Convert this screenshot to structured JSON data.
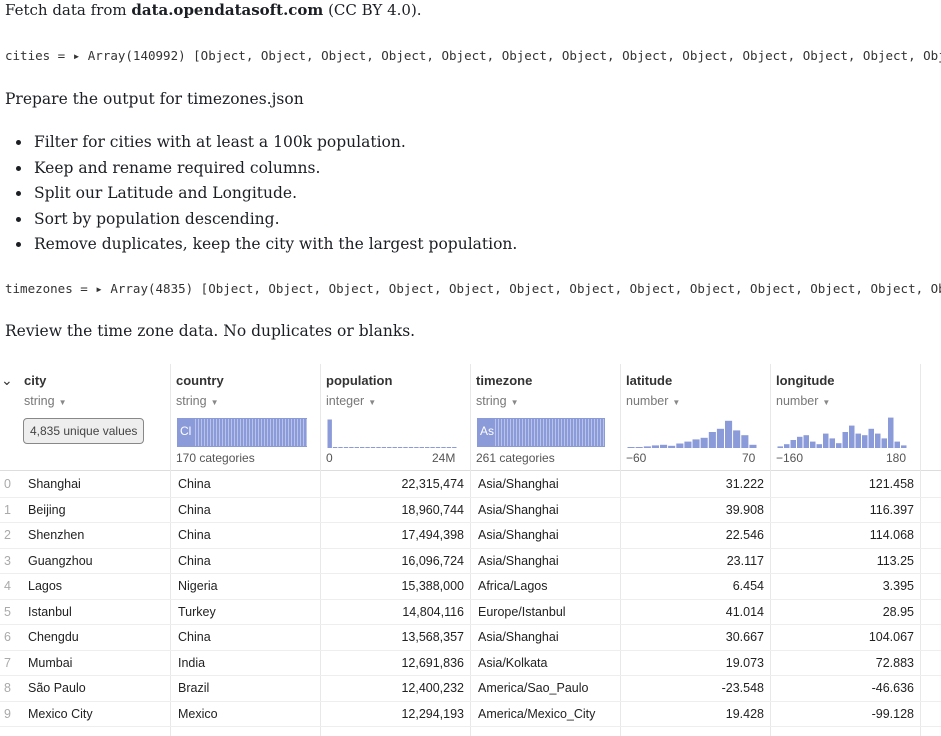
{
  "fetch": {
    "prefix": "Fetch data from ",
    "source": "data.opendatasoft.com",
    "suffix": " (CC BY 4.0)."
  },
  "cities_output": {
    "text": "cities = ▸ Array(140992) [Object, Object, Object, Object, Object, Object, Object, Object, Object, Object, Object, Object, Object"
  },
  "prepare_text": "Prepare the output for timezones.json",
  "steps": [
    "Filter for cities with at least a 100k population.",
    "Keep and rename required columns.",
    "Split our Latitude and Longitude.",
    "Sort by population descending.",
    "Remove duplicates, keep the city with the largest population."
  ],
  "timezones_output": {
    "text": "timezones = ▸ Array(4835) [Object, Object, Object, Object, Object, Object, Object, Object, Object, Object, Object, Object, Object"
  },
  "review_text": "Review the time zone data. No duplicates or blanks.",
  "table": {
    "columns": [
      {
        "name": "city",
        "type": "string",
        "summary": "4,835 unique values"
      },
      {
        "name": "country",
        "type": "string",
        "bar_label": "Cl",
        "count_label": "170 categories"
      },
      {
        "name": "population",
        "type": "integer",
        "lo": "0",
        "hi": "24M"
      },
      {
        "name": "timezone",
        "type": "string",
        "bar_label": "As",
        "count_label": "261 categories"
      },
      {
        "name": "latitude",
        "type": "number",
        "lo": "−60",
        "hi": "70"
      },
      {
        "name": "longitude",
        "type": "number",
        "lo": "−160",
        "hi": "180"
      }
    ],
    "rows": [
      {
        "idx": "0",
        "city": "Shanghai",
        "country": "China",
        "population": "22,315,474",
        "timezone": "Asia/Shanghai",
        "latitude": "31.222",
        "longitude": "121.458"
      },
      {
        "idx": "1",
        "city": "Beijing",
        "country": "China",
        "population": "18,960,744",
        "timezone": "Asia/Shanghai",
        "latitude": "39.908",
        "longitude": "116.397"
      },
      {
        "idx": "2",
        "city": "Shenzhen",
        "country": "China",
        "population": "17,494,398",
        "timezone": "Asia/Shanghai",
        "latitude": "22.546",
        "longitude": "114.068"
      },
      {
        "idx": "3",
        "city": "Guangzhou",
        "country": "China",
        "population": "16,096,724",
        "timezone": "Asia/Shanghai",
        "latitude": "23.117",
        "longitude": "113.25"
      },
      {
        "idx": "4",
        "city": "Lagos",
        "country": "Nigeria",
        "population": "15,388,000",
        "timezone": "Africa/Lagos",
        "latitude": "6.454",
        "longitude": "3.395"
      },
      {
        "idx": "5",
        "city": "Istanbul",
        "country": "Turkey",
        "population": "14,804,116",
        "timezone": "Europe/Istanbul",
        "latitude": "41.014",
        "longitude": "28.95"
      },
      {
        "idx": "6",
        "city": "Chengdu",
        "country": "China",
        "population": "13,568,357",
        "timezone": "Asia/Shanghai",
        "latitude": "30.667",
        "longitude": "104.067"
      },
      {
        "idx": "7",
        "city": "Mumbai",
        "country": "India",
        "population": "12,691,836",
        "timezone": "Asia/Kolkata",
        "latitude": "19.073",
        "longitude": "72.883"
      },
      {
        "idx": "8",
        "city": "São Paulo",
        "country": "Brazil",
        "population": "12,400,232",
        "timezone": "America/Sao_Paulo",
        "latitude": "-23.548",
        "longitude": "-46.636"
      },
      {
        "idx": "9",
        "city": "Mexico City",
        "country": "Mexico",
        "population": "12,294,193",
        "timezone": "America/Mexico_City",
        "latitude": "19.428",
        "longitude": "-99.128"
      }
    ]
  },
  "histograms": {
    "population": [
      0.95,
      0.02,
      0.01,
      0.01,
      0.01,
      0.01,
      0.01,
      0.01,
      0.01,
      0.01,
      0.01,
      0.01,
      0.01,
      0.01,
      0.01,
      0.01,
      0.01,
      0.01,
      0.01,
      0.01,
      0.01,
      0.01,
      0.01,
      0.01
    ],
    "latitude": [
      0.02,
      0.03,
      0.05,
      0.08,
      0.1,
      0.07,
      0.14,
      0.2,
      0.27,
      0.32,
      0.5,
      0.6,
      0.85,
      0.55,
      0.4,
      0.1
    ],
    "longitude": [
      0.05,
      0.12,
      0.25,
      0.35,
      0.4,
      0.2,
      0.12,
      0.45,
      0.3,
      0.15,
      0.5,
      0.7,
      0.45,
      0.4,
      0.6,
      0.45,
      0.3,
      0.95,
      0.2,
      0.08
    ]
  },
  "colors": {
    "bar": "#8b9ad9",
    "bar_light": "#b9c3ea"
  },
  "icons": {
    "expand": "chevron-down-icon",
    "output_toggle": "triangle-right-icon"
  }
}
